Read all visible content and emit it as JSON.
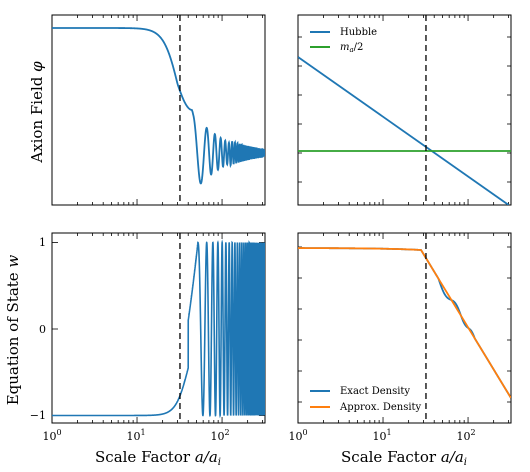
{
  "chart_data": [
    {
      "type": "line",
      "panel": "top-left",
      "ylabel": "Axion Field $\\phi$",
      "xlabel": "",
      "x_scale": "log",
      "xlim": [
        1,
        320
      ],
      "y_ticks_shown": false,
      "vline_x": 32,
      "series": [
        {
          "color": "#1f77b4",
          "description_points": [
            [
              1,
              1.0
            ],
            [
              10,
              1.0
            ],
            [
              20,
              0.98
            ],
            [
              30,
              0.85
            ],
            [
              40,
              0.55
            ],
            [
              50,
              0.2
            ],
            [
              57,
              0.1
            ],
            [
              70,
              0.5
            ],
            [
              85,
              0.24
            ],
            [
              100,
              0.38
            ]
          ],
          "oscillation": {
            "start": 45,
            "center": 0.3,
            "amp0": 0.22,
            "decay": 0.6
          }
        }
      ]
    },
    {
      "type": "line",
      "panel": "top-right",
      "x_scale": "log",
      "y_scale": "log",
      "xlim": [
        1,
        320
      ],
      "y_ticks_shown": false,
      "vline_x": 32,
      "legend": {
        "position": "top-left",
        "entries": [
          "Hubble",
          "$m_a/2$"
        ]
      },
      "series": [
        {
          "name": "Hubble",
          "color": "#1f77b4",
          "x": [
            1,
            300
          ],
          "y_rel": [
            0.77,
            0.0
          ]
        },
        {
          "name": "$m_a/2$",
          "color": "#2ca02c",
          "x": [
            1,
            320
          ],
          "y_rel": [
            0.29,
            0.29
          ]
        }
      ]
    },
    {
      "type": "line",
      "panel": "bottom-left",
      "ylabel": "Equation of State $w$",
      "xlabel": "Scale Factor $a/a_i$",
      "x_scale": "log",
      "xlim": [
        1,
        320
      ],
      "ylim": [
        -1.15,
        1.1
      ],
      "y_ticks": [
        -1,
        0,
        1
      ],
      "x_ticks": [
        1,
        10,
        100
      ],
      "x_tick_labels": [
        "10^0",
        "10^1",
        "10^2"
      ],
      "vline_x": 32,
      "series": [
        {
          "color": "#1f77b4",
          "description": "flat at -1 until ~20, rises through 0 at ~40, then oscillates between -1 and 1 with increasing frequency"
        }
      ]
    },
    {
      "type": "line",
      "panel": "bottom-right",
      "xlabel": "Scale Factor $a/a_i$",
      "x_scale": "log",
      "y_scale": "log",
      "xlim": [
        1,
        320
      ],
      "x_ticks": [
        1,
        10,
        100
      ],
      "x_tick_labels": [
        "10^0",
        "10^1",
        "10^2"
      ],
      "y_ticks_shown": false,
      "vline_x": 32,
      "legend": {
        "position": "bottom-left",
        "entries": [
          "Exact Density",
          "Approx. Density"
        ]
      },
      "series": [
        {
          "name": "Exact Density",
          "color": "#1f77b4"
        },
        {
          "name": "Approx. Density",
          "color": "#ff7f0e"
        }
      ]
    }
  ],
  "labels": {
    "phi_ylabel": "Axion Field",
    "phi_symbol": "φ",
    "w_ylabel": "Equation of State",
    "w_symbol": "w",
    "xlabel_main": "Scale Factor",
    "xlabel_math": "a/a",
    "xlabel_sub": "i",
    "legend_hubble": "Hubble",
    "legend_ma_base": "m",
    "legend_ma_sub": "a",
    "legend_ma_rest": "/2",
    "legend_exact": "Exact Density",
    "legend_approx": "Approx. Density",
    "ytick_1": "1",
    "ytick_0": "0",
    "ytick_m1": "−1",
    "xtick_base": "10",
    "xtick_exp": [
      "0",
      "1",
      "2"
    ]
  },
  "colors": {
    "blue": "#1f77b4",
    "green": "#2ca02c",
    "orange": "#ff7f0e"
  }
}
